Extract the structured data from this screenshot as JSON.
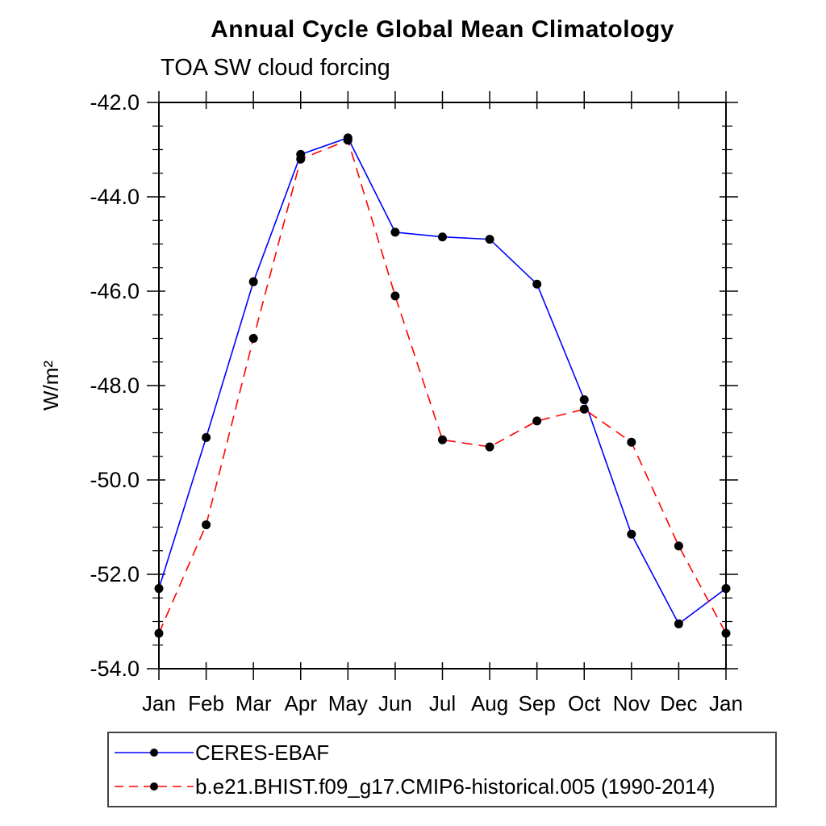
{
  "window": {
    "background_color": "#ffffff"
  },
  "chart_data": {
    "type": "line",
    "title": "Annual Cycle Global Mean Climatology",
    "subtitle": "TOA SW cloud forcing",
    "xlabel": "",
    "ylabel": "W/m²",
    "categories": [
      "Jan",
      "Feb",
      "Mar",
      "Apr",
      "May",
      "Jun",
      "Jul",
      "Aug",
      "Sep",
      "Oct",
      "Nov",
      "Dec",
      "Jan"
    ],
    "ylim": [
      -54.0,
      -42.0
    ],
    "yticks": [
      -42.0,
      -44.0,
      -46.0,
      -48.0,
      -50.0,
      -52.0,
      -54.0
    ],
    "ytick_label_decimals": 1,
    "ytick_minor_step": 0.5,
    "grid": false,
    "legend_position": "bottom",
    "axis_color": "#000000",
    "marker_color": "#000000",
    "series": [
      {
        "name": "CERES-EBAF",
        "color": "#0000ff",
        "line_style": "solid",
        "marker": "circle",
        "values": [
          -52.3,
          -49.1,
          -45.8,
          -43.1,
          -42.75,
          -44.75,
          -44.85,
          -44.9,
          -45.85,
          -48.3,
          -51.15,
          -53.05,
          -52.3
        ]
      },
      {
        "name": "b.e21.BHIST.f09_g17.CMIP6-historical.005 (1990-2014)",
        "color": "#ff0000",
        "line_style": "dashed",
        "marker": "circle",
        "values": [
          -53.25,
          -50.95,
          -47.0,
          -43.2,
          -42.8,
          -46.1,
          -49.15,
          -49.3,
          -48.75,
          -48.5,
          -49.2,
          -51.4,
          -53.25
        ]
      }
    ]
  }
}
